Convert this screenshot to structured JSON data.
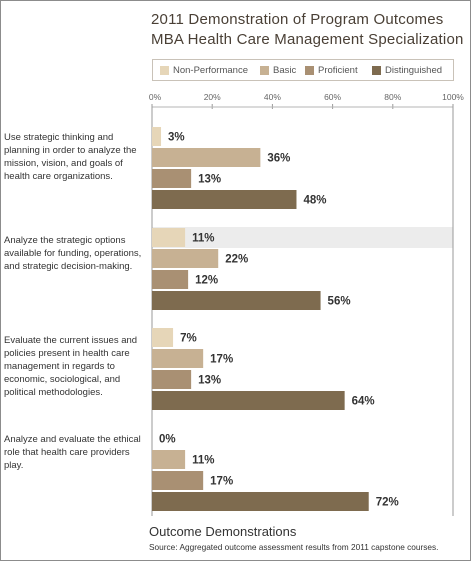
{
  "title_line1": "2011 Demonstration of Program Outcomes",
  "title_line2": "MBA Health Care Management Specialization",
  "legend": [
    {
      "label": "Non-Performance",
      "color": "#e6d6b8"
    },
    {
      "label": "Basic",
      "color": "#c7b193"
    },
    {
      "label": "Proficient",
      "color": "#a99073"
    },
    {
      "label": "Distinguished",
      "color": "#7e6b4f"
    }
  ],
  "footer": {
    "title": "Outcome Demonstrations",
    "source": "Source: Aggregated outcome assessment results from 2011 capstone courses."
  },
  "chart_data": {
    "type": "bar",
    "orientation": "horizontal",
    "xlim": [
      0,
      100
    ],
    "x_ticks": [
      "0%",
      "20%",
      "40%",
      "60%",
      "80%",
      "100%"
    ],
    "x_tick_values": [
      0,
      20,
      40,
      60,
      80,
      100
    ],
    "series_names": [
      "Non-Performance",
      "Basic",
      "Proficient",
      "Distinguished"
    ],
    "highlight": {
      "group": 1,
      "series": 0
    },
    "groups": [
      {
        "label": "Use strategic thinking and planning in order to analyze the mission, vision, and goals of health care organizations.",
        "values": [
          3,
          36,
          13,
          48
        ],
        "labels": [
          "3%",
          "36%",
          "13%",
          "48%"
        ]
      },
      {
        "label": "Analyze the strategic options available for funding, operations, and strategic decision-making.",
        "values": [
          11,
          22,
          12,
          56
        ],
        "labels": [
          "11%",
          "22%",
          "12%",
          "56%"
        ]
      },
      {
        "label": "Evaluate the current issues and policies present in health care management in regards to economic, sociological, and political methodologies.",
        "values": [
          7,
          17,
          13,
          64
        ],
        "labels": [
          "7%",
          "17%",
          "13%",
          "64%"
        ]
      },
      {
        "label": "Analyze and evaluate the ethical role that health care providers play.",
        "values": [
          0,
          11,
          17,
          72
        ],
        "labels": [
          "0%",
          "11%",
          "17%",
          "72%"
        ]
      }
    ]
  }
}
